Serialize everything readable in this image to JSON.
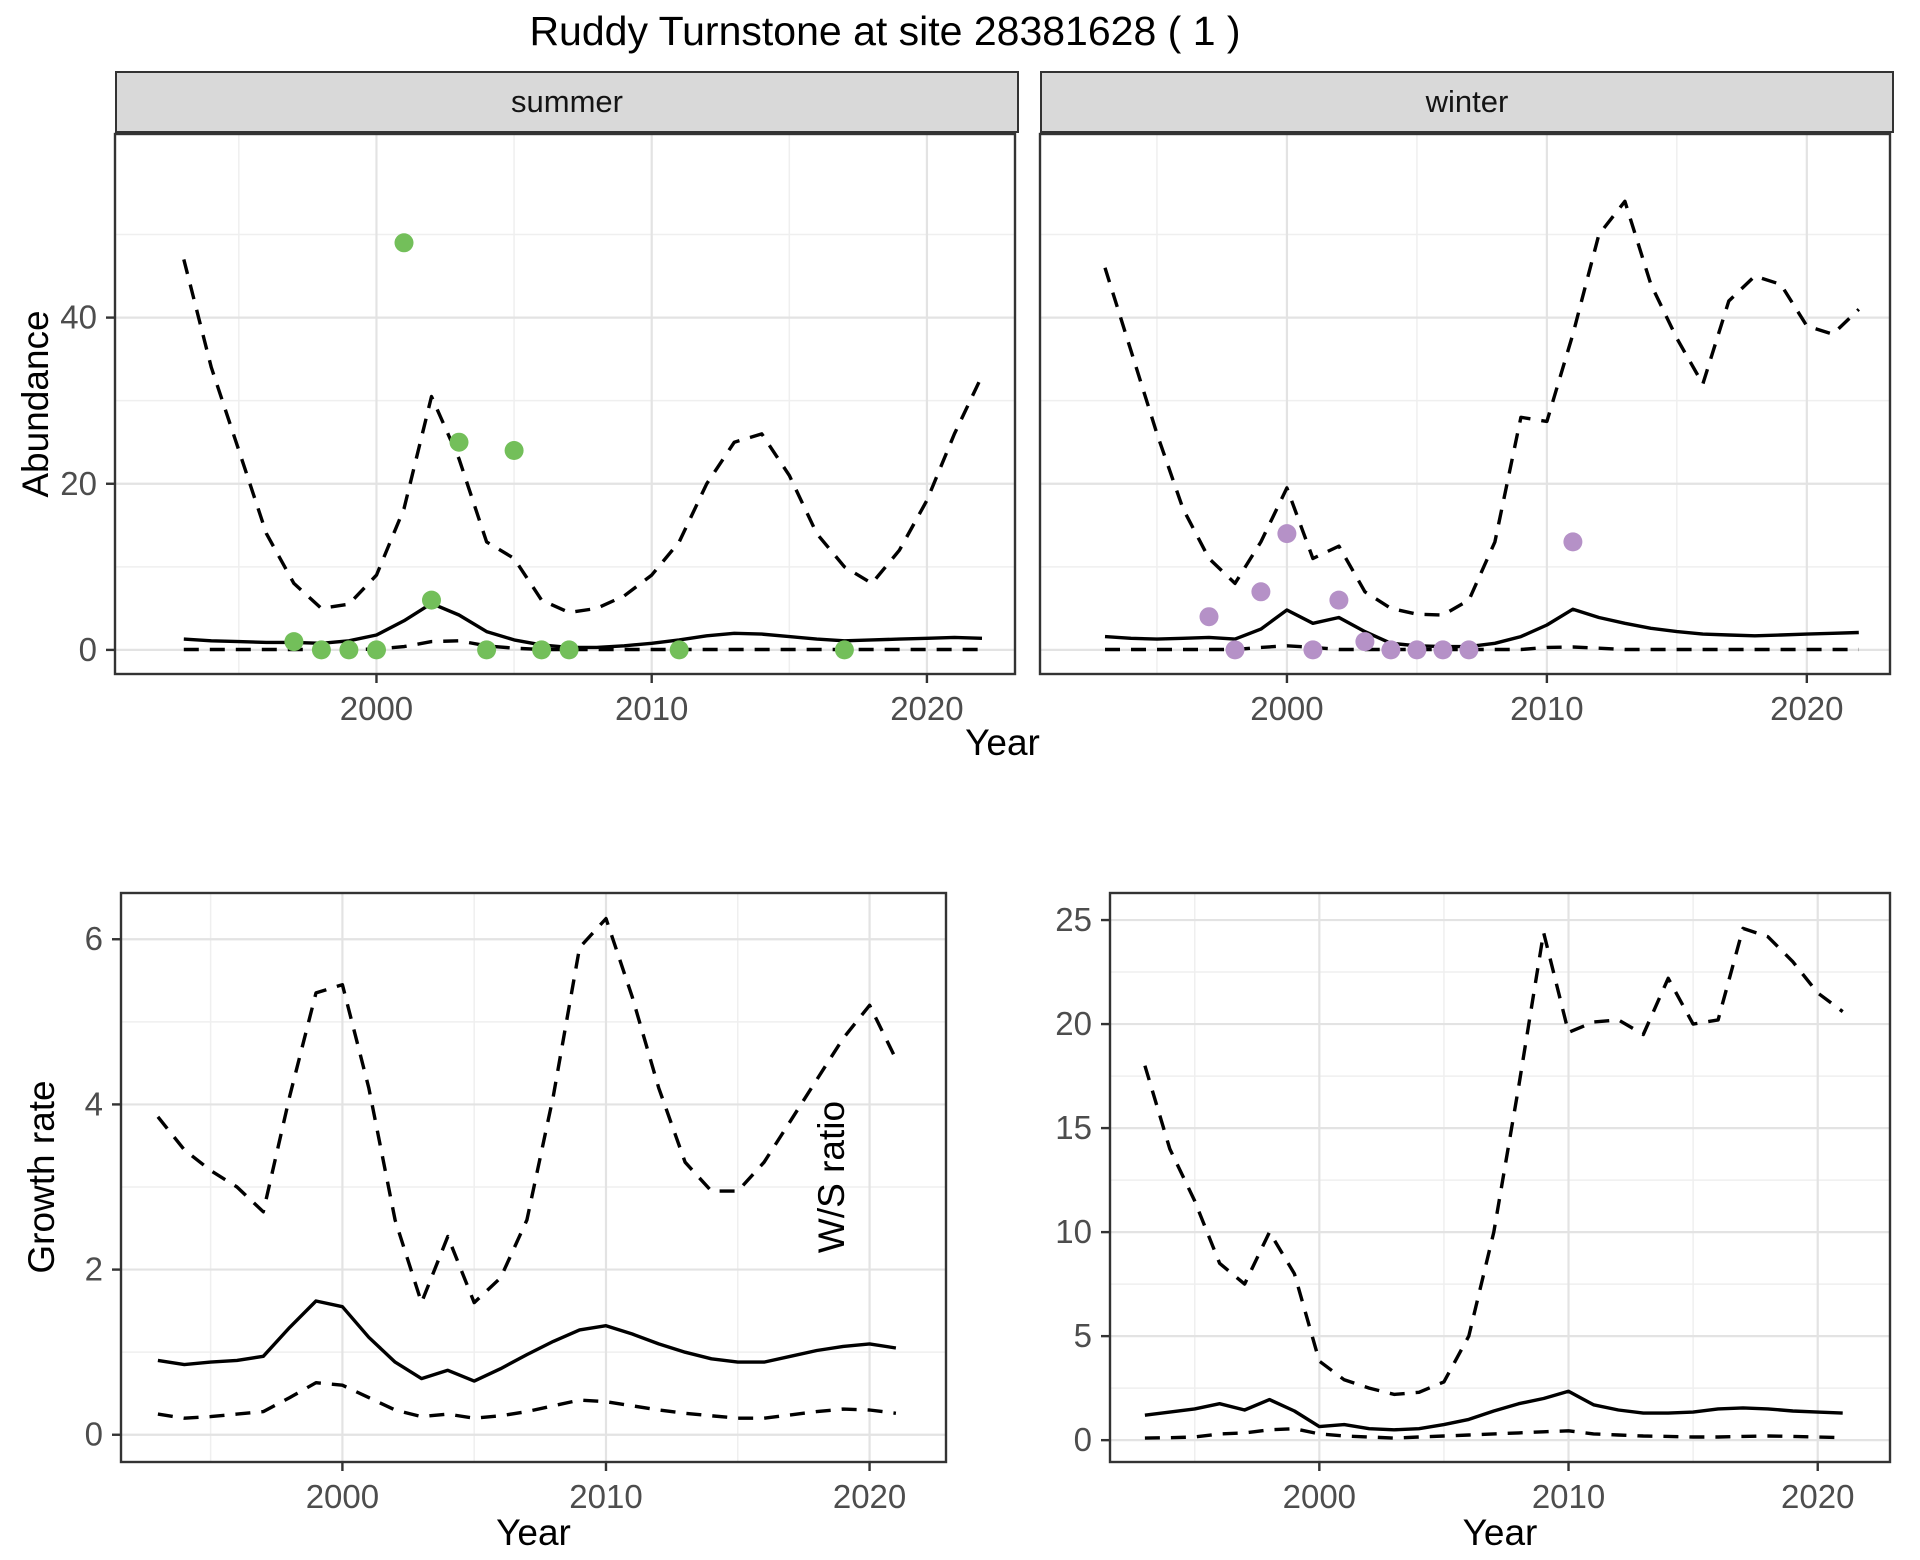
{
  "title": "Ruddy Turnstone at site 28381628 ( 1 )",
  "colors": {
    "summer_points": "#73bf5a",
    "winter_points": "#b591c7",
    "line": "#000000",
    "panel_border": "#333333",
    "grid_major": "#e3e3e3",
    "grid_minor": "#efefef",
    "strip_bg": "#d9d9d9",
    "tick_text": "#4d4d4d"
  },
  "chart_data": [
    {
      "type": "line",
      "facet_label": "summer",
      "xlabel": "Year",
      "ylabel": "Abundance",
      "x_range": [
        1990.5,
        2023.2
      ],
      "y_range": [
        -2.9,
        62.1
      ],
      "x_ticks": [
        2000,
        2010,
        2020
      ],
      "x_minor": [
        1995,
        2005,
        2015
      ],
      "y_ticks": [
        0,
        20,
        40
      ],
      "y_minor": [
        10,
        30,
        50
      ],
      "series": [
        {
          "name": "median",
          "style": "solid",
          "x": [
            1993,
            1994,
            1995,
            1996,
            1997,
            1998,
            1999,
            2000,
            2001,
            2002,
            2003,
            2004,
            2005,
            2006,
            2007,
            2008,
            2009,
            2010,
            2011,
            2012,
            2013,
            2014,
            2015,
            2016,
            2017,
            2018,
            2019,
            2020,
            2021,
            2022
          ],
          "y": [
            1.3,
            1.1,
            1.0,
            0.9,
            0.9,
            0.8,
            1.1,
            1.8,
            3.5,
            5.6,
            4.2,
            2.2,
            1.2,
            0.6,
            0.3,
            0.3,
            0.5,
            0.8,
            1.2,
            1.7,
            2.0,
            1.9,
            1.6,
            1.3,
            1.1,
            1.2,
            1.3,
            1.4,
            1.5,
            1.4
          ]
        },
        {
          "name": "upper_95ci",
          "style": "dashed",
          "x": [
            1993,
            1994,
            1995,
            1996,
            1997,
            1998,
            1999,
            2000,
            2001,
            2002,
            2003,
            2004,
            2005,
            2006,
            2007,
            2008,
            2009,
            2010,
            2011,
            2012,
            2013,
            2014,
            2015,
            2016,
            2017,
            2018,
            2019,
            2020,
            2021,
            2022
          ],
          "y": [
            47,
            34,
            24,
            14,
            8,
            5,
            5.5,
            9,
            17,
            30.5,
            23,
            13,
            11,
            6,
            4.5,
            5,
            6.5,
            9,
            13,
            20,
            25,
            26,
            21,
            14,
            10,
            8,
            12,
            18,
            26,
            33
          ]
        },
        {
          "name": "lower_95ci",
          "style": "dashed",
          "x": [
            1993,
            1994,
            1995,
            1996,
            1997,
            1998,
            1999,
            2000,
            2001,
            2002,
            2003,
            2004,
            2005,
            2006,
            2007,
            2008,
            2009,
            2010,
            2011,
            2012,
            2013,
            2014,
            2015,
            2016,
            2017,
            2018,
            2019,
            2020,
            2021,
            2022
          ],
          "y": [
            0.05,
            0.05,
            0.05,
            0.05,
            0.05,
            0.05,
            0.05,
            0.1,
            0.4,
            1.0,
            1.1,
            0.5,
            0.2,
            0.05,
            0.05,
            0.05,
            0.05,
            0.05,
            0.05,
            0.05,
            0.05,
            0.05,
            0.05,
            0.05,
            0.05,
            0.05,
            0.05,
            0.05,
            0.05,
            0.05
          ]
        }
      ],
      "points": {
        "name": "observed_counts",
        "color_key": "summer_points",
        "x": [
          1997,
          1998,
          1999,
          2000,
          2001,
          2002,
          2003,
          2004,
          2005,
          2006,
          2007,
          2011,
          2017
        ],
        "y": [
          1,
          0,
          0,
          0,
          49,
          6,
          25,
          0,
          24,
          0,
          0,
          0,
          0
        ]
      }
    },
    {
      "type": "line",
      "facet_label": "winter",
      "xlabel": "Year",
      "ylabel": "Abundance",
      "x_range": [
        1990.5,
        2023.2
      ],
      "y_range": [
        -2.9,
        62.1
      ],
      "x_ticks": [
        2000,
        2010,
        2020
      ],
      "x_minor": [
        1995,
        2005,
        2015
      ],
      "y_ticks": [
        0,
        20,
        40
      ],
      "y_minor": [
        10,
        30,
        50
      ],
      "series": [
        {
          "name": "median",
          "style": "solid",
          "x": [
            1993,
            1994,
            1995,
            1996,
            1997,
            1998,
            1999,
            2000,
            2001,
            2002,
            2003,
            2004,
            2005,
            2006,
            2007,
            2008,
            2009,
            2010,
            2011,
            2012,
            2013,
            2014,
            2015,
            2016,
            2017,
            2018,
            2019,
            2020,
            2021,
            2022
          ],
          "y": [
            1.6,
            1.4,
            1.3,
            1.4,
            1.5,
            1.3,
            2.5,
            4.8,
            3.2,
            3.9,
            2.2,
            0.8,
            0.5,
            0.4,
            0.4,
            0.8,
            1.6,
            3.0,
            4.9,
            3.9,
            3.2,
            2.6,
            2.2,
            1.9,
            1.8,
            1.7,
            1.8,
            1.9,
            2.0,
            2.1
          ]
        },
        {
          "name": "upper_95ci",
          "style": "dashed",
          "x": [
            1993,
            1994,
            1995,
            1996,
            1997,
            1998,
            1999,
            2000,
            2001,
            2002,
            2003,
            2004,
            2005,
            2006,
            2007,
            2008,
            2009,
            2010,
            2011,
            2012,
            2013,
            2014,
            2015,
            2016,
            2017,
            2018,
            2019,
            2020,
            2021,
            2022
          ],
          "y": [
            46,
            36,
            26,
            17,
            11,
            8,
            13,
            19.5,
            11,
            12.5,
            7,
            5,
            4.3,
            4.2,
            6,
            13,
            28,
            27.5,
            38,
            50,
            54,
            44,
            37.5,
            32,
            42,
            45,
            44,
            39,
            38,
            41
          ]
        },
        {
          "name": "lower_95ci",
          "style": "dashed",
          "x": [
            1993,
            1994,
            1995,
            1996,
            1997,
            1998,
            1999,
            2000,
            2001,
            2002,
            2003,
            2004,
            2005,
            2006,
            2007,
            2008,
            2009,
            2010,
            2011,
            2012,
            2013,
            2014,
            2015,
            2016,
            2017,
            2018,
            2019,
            2020,
            2021,
            2022
          ],
          "y": [
            0.05,
            0.05,
            0.05,
            0.05,
            0.05,
            0.05,
            0.3,
            0.5,
            0.3,
            0.05,
            0.05,
            0.05,
            0.05,
            0.05,
            0.05,
            0.05,
            0.05,
            0.3,
            0.35,
            0.2,
            0.05,
            0.05,
            0.05,
            0.05,
            0.05,
            0.05,
            0.05,
            0.05,
            0.05,
            0.05
          ]
        }
      ],
      "points": {
        "name": "observed_counts",
        "color_key": "winter_points",
        "x": [
          1997,
          1998,
          1999,
          2000,
          2001,
          2002,
          2003,
          2004,
          2005,
          2006,
          2007,
          2011
        ],
        "y": [
          4,
          0,
          7,
          14,
          0,
          6,
          1,
          0,
          0,
          0,
          0,
          13
        ]
      }
    },
    {
      "type": "line",
      "facet_label": null,
      "xlabel": "Year",
      "ylabel": "Growth rate",
      "x_range": [
        1991.6,
        2022.9
      ],
      "y_range": [
        -0.33,
        6.56
      ],
      "x_ticks": [
        2000,
        2010,
        2020
      ],
      "x_minor": [
        1995,
        2005,
        2015
      ],
      "y_ticks": [
        0,
        2,
        4,
        6
      ],
      "y_minor": [
        1,
        3,
        5
      ],
      "series": [
        {
          "name": "median",
          "style": "solid",
          "x": [
            1993,
            1994,
            1995,
            1996,
            1997,
            1998,
            1999,
            2000,
            2001,
            2002,
            2003,
            2004,
            2005,
            2006,
            2007,
            2008,
            2009,
            2010,
            2011,
            2012,
            2013,
            2014,
            2015,
            2016,
            2017,
            2018,
            2019,
            2020,
            2021
          ],
          "y": [
            0.9,
            0.85,
            0.88,
            0.9,
            0.95,
            1.3,
            1.62,
            1.55,
            1.18,
            0.88,
            0.68,
            0.78,
            0.65,
            0.8,
            0.97,
            1.13,
            1.27,
            1.32,
            1.22,
            1.1,
            1.0,
            0.92,
            0.88,
            0.88,
            0.95,
            1.02,
            1.07,
            1.1,
            1.05
          ]
        },
        {
          "name": "upper_95ci",
          "style": "dashed",
          "x": [
            1993,
            1994,
            1995,
            1996,
            1997,
            1998,
            1999,
            2000,
            2001,
            2002,
            2003,
            2004,
            2005,
            2006,
            2007,
            2008,
            2009,
            2010,
            2011,
            2012,
            2013,
            2014,
            2015,
            2016,
            2017,
            2018,
            2019,
            2020,
            2021
          ],
          "y": [
            3.85,
            3.45,
            3.2,
            3.0,
            2.7,
            4.1,
            5.35,
            5.45,
            4.2,
            2.6,
            1.6,
            2.4,
            1.6,
            1.9,
            2.6,
            4.1,
            5.9,
            6.25,
            5.3,
            4.2,
            3.3,
            2.95,
            2.95,
            3.3,
            3.8,
            4.3,
            4.8,
            5.2,
            4.55
          ]
        },
        {
          "name": "lower_95ci",
          "style": "dashed",
          "x": [
            1993,
            1994,
            1995,
            1996,
            1997,
            1998,
            1999,
            2000,
            2001,
            2002,
            2003,
            2004,
            2005,
            2006,
            2007,
            2008,
            2009,
            2010,
            2011,
            2012,
            2013,
            2014,
            2015,
            2016,
            2017,
            2018,
            2019,
            2020,
            2021
          ],
          "y": [
            0.25,
            0.2,
            0.22,
            0.25,
            0.28,
            0.45,
            0.63,
            0.6,
            0.45,
            0.3,
            0.22,
            0.25,
            0.2,
            0.23,
            0.28,
            0.35,
            0.42,
            0.4,
            0.35,
            0.3,
            0.26,
            0.23,
            0.2,
            0.2,
            0.24,
            0.28,
            0.31,
            0.3,
            0.26
          ]
        }
      ],
      "points": null
    },
    {
      "type": "line",
      "facet_label": null,
      "xlabel": "Year",
      "ylabel": "W/S ratio",
      "x_range": [
        1991.6,
        2022.9
      ],
      "y_range": [
        -1.05,
        26.3
      ],
      "x_ticks": [
        2000,
        2010,
        2020
      ],
      "x_minor": [
        1995,
        2005,
        2015
      ],
      "y_ticks": [
        0,
        5,
        10,
        15,
        20,
        25
      ],
      "y_minor": [
        2.5,
        7.5,
        12.5,
        17.5,
        22.5
      ],
      "series": [
        {
          "name": "median",
          "style": "solid",
          "x": [
            1993,
            1994,
            1995,
            1996,
            1997,
            1998,
            1999,
            2000,
            2001,
            2002,
            2003,
            2004,
            2005,
            2006,
            2007,
            2008,
            2009,
            2010,
            2011,
            2012,
            2013,
            2014,
            2015,
            2016,
            2017,
            2018,
            2019,
            2020,
            2021
          ],
          "y": [
            1.2,
            1.35,
            1.5,
            1.75,
            1.45,
            1.95,
            1.4,
            0.65,
            0.75,
            0.55,
            0.5,
            0.55,
            0.75,
            1.0,
            1.4,
            1.75,
            2.0,
            2.35,
            1.7,
            1.45,
            1.3,
            1.3,
            1.35,
            1.5,
            1.55,
            1.5,
            1.4,
            1.35,
            1.3
          ]
        },
        {
          "name": "upper_95ci",
          "style": "dashed",
          "x": [
            1993,
            1994,
            1995,
            1996,
            1997,
            1998,
            1999,
            2000,
            2001,
            2002,
            2003,
            2004,
            2005,
            2006,
            2007,
            2008,
            2009,
            2010,
            2011,
            2012,
            2013,
            2014,
            2015,
            2016,
            2017,
            2018,
            2019,
            2020,
            2021
          ],
          "y": [
            18,
            14,
            11.5,
            8.5,
            7.5,
            10,
            8,
            3.8,
            2.9,
            2.5,
            2.2,
            2.3,
            2.8,
            5,
            10,
            17,
            24.4,
            19.6,
            20.1,
            20.2,
            19.5,
            22.2,
            20,
            20.2,
            24.6,
            24.2,
            23,
            21.5,
            20.6
          ]
        },
        {
          "name": "lower_95ci",
          "style": "dashed",
          "x": [
            1993,
            1994,
            1995,
            1996,
            1997,
            1998,
            1999,
            2000,
            2001,
            2002,
            2003,
            2004,
            2005,
            2006,
            2007,
            2008,
            2009,
            2010,
            2011,
            2012,
            2013,
            2014,
            2015,
            2016,
            2017,
            2018,
            2019,
            2020,
            2021
          ],
          "y": [
            0.1,
            0.12,
            0.15,
            0.3,
            0.35,
            0.5,
            0.55,
            0.3,
            0.2,
            0.15,
            0.1,
            0.15,
            0.2,
            0.25,
            0.3,
            0.35,
            0.4,
            0.45,
            0.3,
            0.25,
            0.2,
            0.18,
            0.15,
            0.15,
            0.18,
            0.2,
            0.18,
            0.15,
            0.12
          ]
        }
      ],
      "points": null
    }
  ]
}
